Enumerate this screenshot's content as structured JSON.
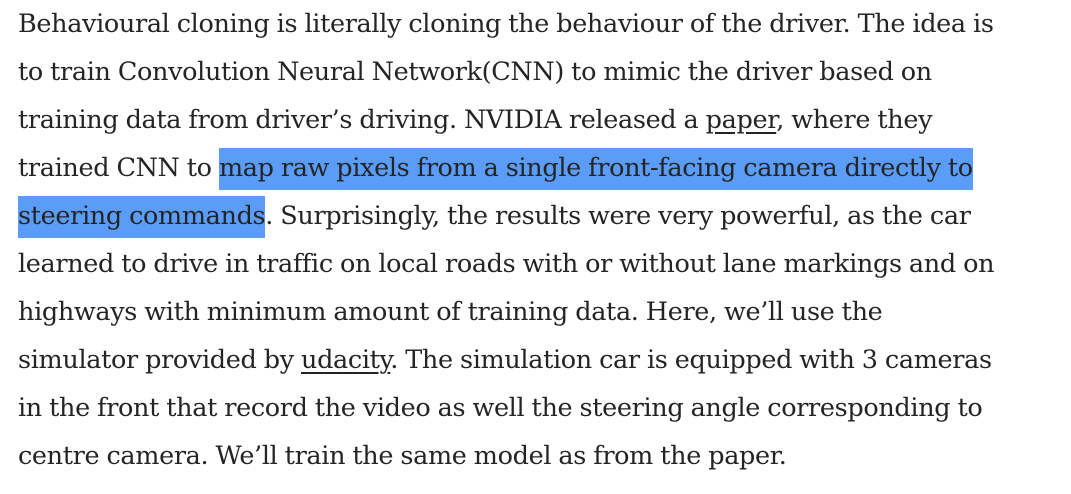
{
  "paragraph": {
    "line1": "Behavioural cloning is literally cloning the behaviour of the driver. The idea is",
    "line2": "to train Convolution Neural Network(CNN) to mimic the driver based on",
    "line3_before": "training data from driver’s driving. NVIDIA released a ",
    "line3_link": "paper",
    "line3_after": ", where they",
    "line4_before": "trained CNN to ",
    "line4_highlight": "map raw pixels from a single front-facing camera directly to",
    "line5_highlight": "steering commands",
    "line5_after": ". Surprisingly, the results were very powerful, as the car",
    "line6": "learned to drive in traffic on local roads with or without lane markings and on",
    "line7": "highways with minimum amount of training data. Here, we’ll use the",
    "line8_before": "simulator provided by ",
    "line8_link": "udacity",
    "line8_after": ". The simulation car is equipped with 3 cameras",
    "line9": "in the front that record the video as well the steering angle corresponding to",
    "line10": "centre camera. We’ll train the same model as from the paper."
  },
  "colors": {
    "text": "#242424",
    "selection_highlight": "#5b9cf6",
    "background": "#ffffff"
  }
}
